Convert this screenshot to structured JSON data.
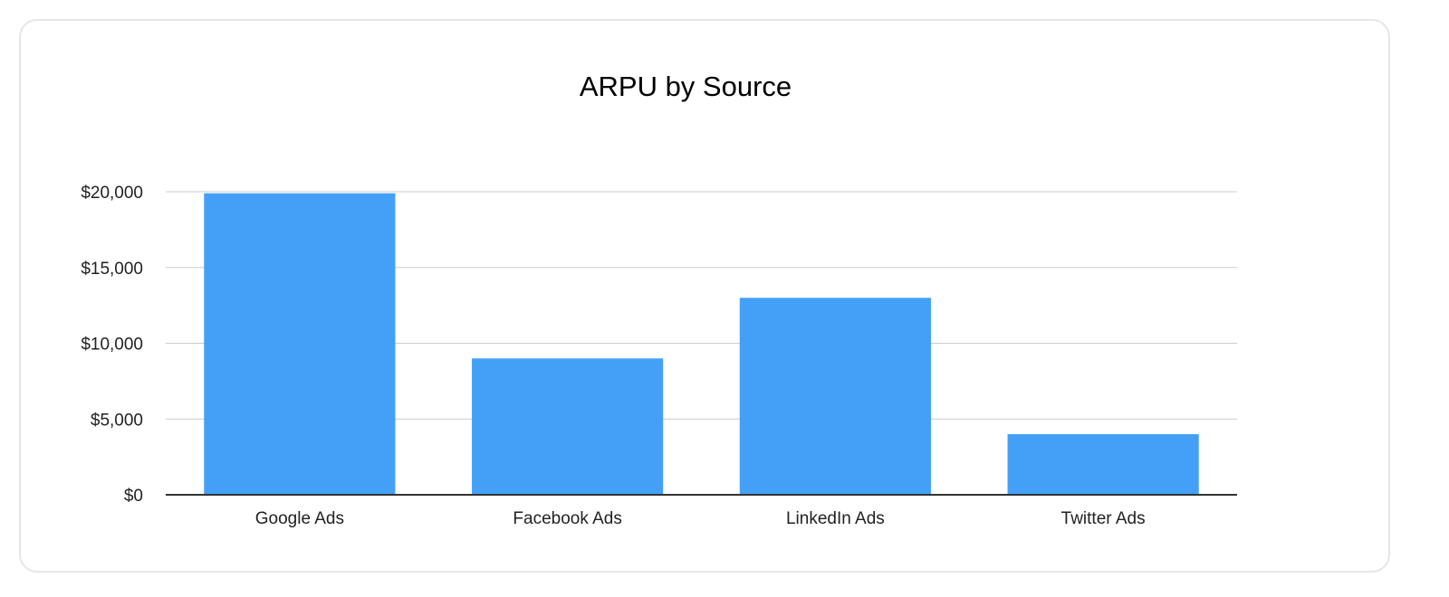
{
  "chart_data": {
    "type": "bar",
    "title": "ARPU by Source",
    "xlabel": "",
    "ylabel": "",
    "categories": [
      "Google Ads",
      "Facebook Ads",
      "LinkedIn Ads",
      "Twitter Ads"
    ],
    "series": [
      {
        "values": [
          19900,
          9000,
          13000,
          4000
        ]
      }
    ],
    "ylim": [
      0,
      20000
    ],
    "yticks": [
      0,
      5000,
      10000,
      15000,
      20000
    ],
    "ytick_labels": [
      "$0",
      "$5,000",
      "$10,000",
      "$15,000",
      "$20,000"
    ],
    "grid": true,
    "legend": "none",
    "bar_color": "#44a0f7"
  }
}
